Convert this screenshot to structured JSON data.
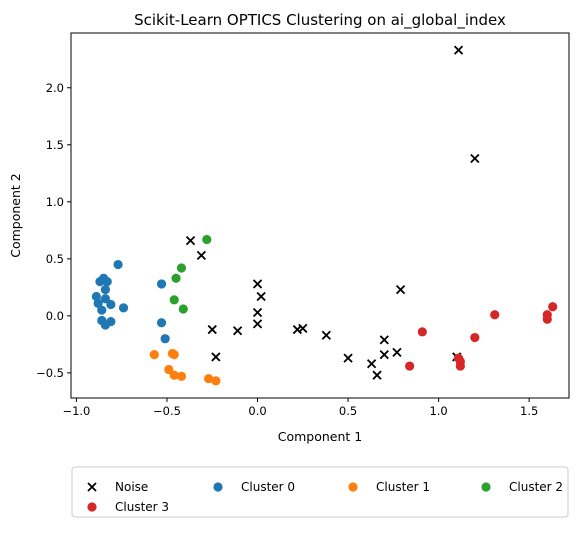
{
  "chart_data": {
    "type": "scatter",
    "title": "Scikit-Learn OPTICS Clustering on ai_global_index",
    "xlabel": "Component 1",
    "ylabel": "Component 2",
    "xlim": [
      -1.03,
      1.72
    ],
    "ylim": [
      -0.72,
      2.48
    ],
    "xticks": [
      -1.0,
      -0.5,
      0.0,
      0.5,
      1.0,
      1.5
    ],
    "xtick_labels": [
      "−1.0",
      "−0.5",
      "0.0",
      "0.5",
      "1.0",
      "1.5"
    ],
    "yticks": [
      -0.5,
      0.0,
      0.5,
      1.0,
      1.5,
      2.0
    ],
    "ytick_labels": [
      "−0.5",
      "0.0",
      "0.5",
      "1.0",
      "1.5",
      "2.0"
    ],
    "grid": false,
    "legend_position": "bottom-outside",
    "series": [
      {
        "name": "Noise",
        "marker": "x",
        "color": "#000000",
        "points": [
          [
            1.11,
            2.33
          ],
          [
            1.2,
            1.38
          ],
          [
            -0.37,
            0.66
          ],
          [
            -0.31,
            0.53
          ],
          [
            0.0,
            0.28
          ],
          [
            0.02,
            0.17
          ],
          [
            0.0,
            0.03
          ],
          [
            0.0,
            -0.07
          ],
          [
            -0.25,
            -0.12
          ],
          [
            -0.11,
            -0.13
          ],
          [
            0.22,
            -0.12
          ],
          [
            0.25,
            -0.11
          ],
          [
            0.38,
            -0.17
          ],
          [
            0.79,
            0.23
          ],
          [
            0.7,
            -0.21
          ],
          [
            0.7,
            -0.34
          ],
          [
            0.77,
            -0.32
          ],
          [
            0.5,
            -0.37
          ],
          [
            0.63,
            -0.42
          ],
          [
            0.66,
            -0.52
          ],
          [
            -0.23,
            -0.36
          ],
          [
            1.1,
            -0.36
          ]
        ]
      },
      {
        "name": "Cluster 0",
        "marker": "o",
        "color": "#1f77b4",
        "points": [
          [
            -0.85,
            0.33
          ],
          [
            -0.87,
            0.3
          ],
          [
            -0.83,
            0.3
          ],
          [
            -0.77,
            0.45
          ],
          [
            -0.89,
            0.17
          ],
          [
            -0.88,
            0.11
          ],
          [
            -0.84,
            0.15
          ],
          [
            -0.84,
            0.23
          ],
          [
            -0.86,
            0.05
          ],
          [
            -0.81,
            0.1
          ],
          [
            -0.74,
            0.07
          ],
          [
            -0.86,
            -0.04
          ],
          [
            -0.84,
            -0.08
          ],
          [
            -0.81,
            -0.05
          ],
          [
            -0.53,
            0.28
          ],
          [
            -0.53,
            -0.06
          ],
          [
            -0.51,
            -0.2
          ]
        ]
      },
      {
        "name": "Cluster 1",
        "marker": "o",
        "color": "#ff7f0e",
        "points": [
          [
            -0.57,
            -0.34
          ],
          [
            -0.47,
            -0.33
          ],
          [
            -0.46,
            -0.34
          ],
          [
            -0.49,
            -0.47
          ],
          [
            -0.46,
            -0.52
          ],
          [
            -0.42,
            -0.53
          ],
          [
            -0.27,
            -0.55
          ],
          [
            -0.23,
            -0.57
          ]
        ]
      },
      {
        "name": "Cluster 2",
        "marker": "o",
        "color": "#2ca02c",
        "points": [
          [
            -0.28,
            0.67
          ],
          [
            -0.42,
            0.42
          ],
          [
            -0.45,
            0.33
          ],
          [
            -0.46,
            0.14
          ],
          [
            -0.41,
            0.06
          ]
        ]
      },
      {
        "name": "Cluster 3",
        "marker": "o",
        "color": "#d62728",
        "points": [
          [
            1.63,
            0.08
          ],
          [
            1.6,
            0.01
          ],
          [
            1.6,
            -0.03
          ],
          [
            1.31,
            0.01
          ],
          [
            0.91,
            -0.14
          ],
          [
            1.2,
            -0.19
          ],
          [
            1.11,
            -0.37
          ],
          [
            1.12,
            -0.4
          ],
          [
            1.12,
            -0.44
          ],
          [
            0.84,
            -0.44
          ]
        ]
      }
    ]
  }
}
